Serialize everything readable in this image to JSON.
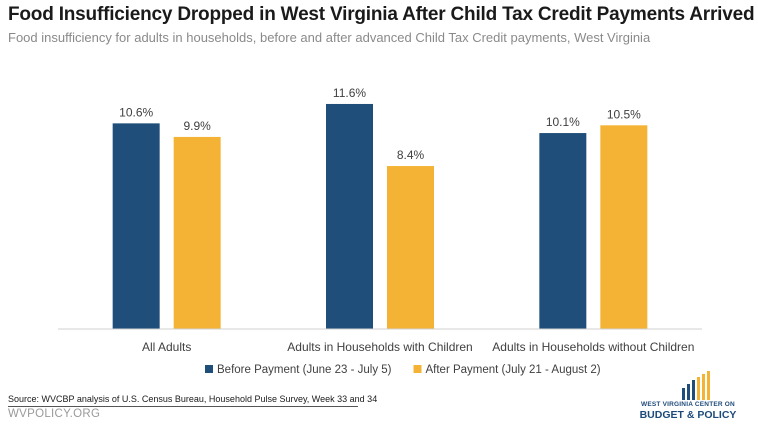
{
  "chart_data": {
    "type": "bar",
    "title": "Food Insufficiency Dropped in West Virginia After Child Tax Credit Payments Arrived",
    "subtitle": "Food insufficiency for adults in households, before and after advanced Child Tax Credit payments, West Virginia",
    "categories": [
      "All Adults",
      "Adults in Households with Children",
      "Adults in Households without Children"
    ],
    "series": [
      {
        "name": "Before Payment (June 23 - July 5)",
        "values": [
          10.6,
          11.6,
          10.1
        ],
        "labels": [
          "10.6%",
          "11.6%",
          "10.1%"
        ],
        "color": "#1e4e79"
      },
      {
        "name": "After Payment (July 21 - August 2)",
        "values": [
          9.9,
          8.4,
          10.5
        ],
        "labels": [
          "9.9%",
          "8.4%",
          "10.5%"
        ],
        "color": "#f5b335"
      }
    ],
    "ylim": [
      0,
      12
    ],
    "grid": false,
    "legend_position": "bottom"
  },
  "footer": {
    "source": "Source: WVCBP analysis of U.S. Census Bureau, Household Pulse Survey, Week 33 and 34",
    "site": "WVPOLICY.ORG"
  },
  "logo": {
    "line1": "WEST VIRGINIA CENTER ON",
    "line2": "BUDGET & POLICY",
    "colors": {
      "dark": "#1e4e79",
      "gold": "#f5b335"
    }
  }
}
